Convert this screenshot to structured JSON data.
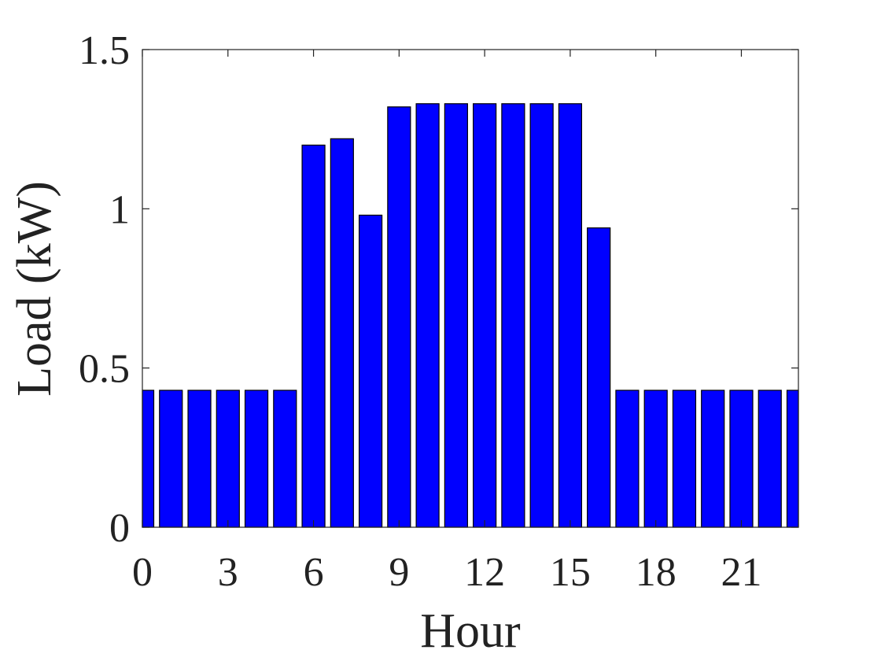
{
  "chart_data": {
    "type": "bar",
    "title": "",
    "xlabel": "Hour",
    "ylabel": "Load (kW)",
    "x": [
      0,
      1,
      2,
      3,
      4,
      5,
      6,
      7,
      8,
      9,
      10,
      11,
      12,
      13,
      14,
      15,
      16,
      17,
      18,
      19,
      20,
      21,
      22,
      23
    ],
    "values": [
      0.43,
      0.43,
      0.43,
      0.43,
      0.43,
      0.43,
      1.2,
      1.22,
      0.98,
      1.32,
      1.33,
      1.33,
      1.33,
      1.33,
      1.33,
      1.33,
      0.94,
      0.43,
      0.43,
      0.43,
      0.43,
      0.43,
      0.43,
      0.43
    ],
    "xlim": [
      0,
      23
    ],
    "ylim": [
      0,
      1.5
    ],
    "xticks": [
      0,
      3,
      6,
      9,
      12,
      15,
      18,
      21
    ],
    "xtick_labels": [
      "0",
      "3",
      "6",
      "9",
      "12",
      "15",
      "18",
      "21"
    ],
    "yticks": [
      0,
      0.5,
      1,
      1.5
    ],
    "ytick_labels": [
      "0",
      "0.5",
      "1",
      "1.5"
    ],
    "bar_color": "#0000ff",
    "grid": false,
    "legend": "none"
  }
}
